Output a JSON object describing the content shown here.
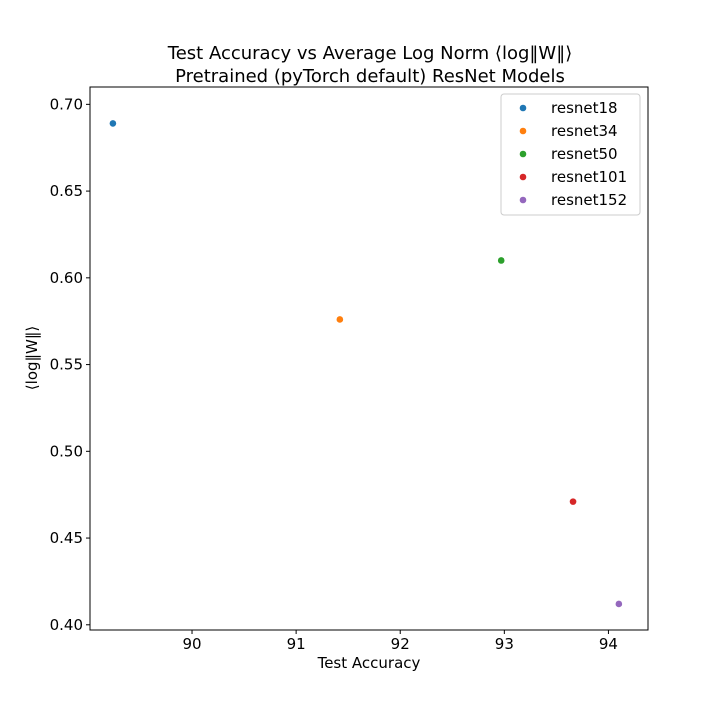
{
  "chart_data": {
    "type": "scatter",
    "title": "Test Accuracy vs Average Log Norm ⟨log‖W‖⟩",
    "subtitle": "Pretrained (pyTorch default) ResNet Models",
    "xlabel": "Test Accuracy",
    "ylabel": "⟨log‖W‖⟩",
    "xlim": [
      89.02,
      94.38
    ],
    "ylim": [
      0.397,
      0.71
    ],
    "xticks": [
      90,
      91,
      92,
      93,
      94
    ],
    "xtick_labels": [
      "90",
      "91",
      "92",
      "93",
      "94"
    ],
    "yticks": [
      0.4,
      0.45,
      0.5,
      0.55,
      0.6,
      0.65,
      0.7
    ],
    "ytick_labels": [
      "0.40",
      "0.45",
      "0.50",
      "0.55",
      "0.60",
      "0.65",
      "0.70"
    ],
    "grid": false,
    "legend_position": "top-right",
    "series": [
      {
        "name": "resnet18",
        "color": "#1f77b4",
        "points": [
          {
            "x": 89.24,
            "y": 0.689
          }
        ]
      },
      {
        "name": "resnet34",
        "color": "#ff7f0e",
        "points": [
          {
            "x": 91.42,
            "y": 0.576
          }
        ]
      },
      {
        "name": "resnet50",
        "color": "#2ca02c",
        "points": [
          {
            "x": 92.97,
            "y": 0.61
          }
        ]
      },
      {
        "name": "resnet101",
        "color": "#d62728",
        "points": [
          {
            "x": 93.66,
            "y": 0.471
          }
        ]
      },
      {
        "name": "resnet152",
        "color": "#9467bd",
        "points": [
          {
            "x": 94.1,
            "y": 0.412
          }
        ]
      }
    ]
  }
}
